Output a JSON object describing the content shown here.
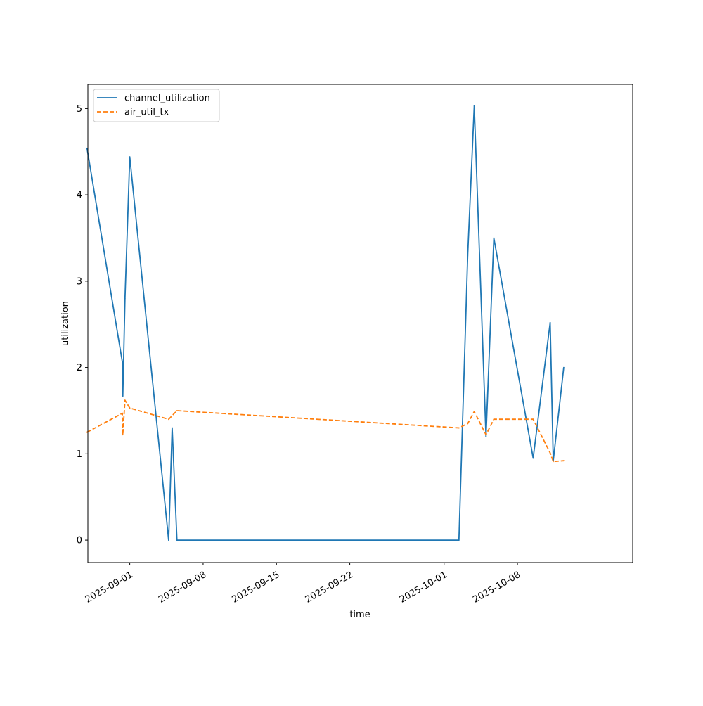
{
  "chart_data": {
    "type": "line",
    "xlabel": "time",
    "ylabel": "utilization",
    "xlim": [
      "2025-08-28T00:00",
      "2025-10-19T00:00"
    ],
    "ylim": [
      -0.26,
      5.28
    ],
    "x_ticks": [
      "2025-09-01",
      "2025-09-08",
      "2025-09-15",
      "2025-09-22",
      "2025-10-01",
      "2025-10-08"
    ],
    "y_ticks": [
      0,
      1,
      2,
      3,
      4,
      5
    ],
    "grid": false,
    "legend_position": "upper-left",
    "series": [
      {
        "name": "channel_utilization",
        "color": "#1f77b4",
        "line_style": "solid",
        "points": [
          {
            "x": "2025-08-27T22:00",
            "y": 4.54
          },
          {
            "x": "2025-08-31T07:00",
            "y": 2.06
          },
          {
            "x": "2025-08-31T08:00",
            "y": 1.67
          },
          {
            "x": "2025-08-31T13:00",
            "y": 2.8
          },
          {
            "x": "2025-09-01T00:00",
            "y": 4.44
          },
          {
            "x": "2025-09-04T17:00",
            "y": 0.0
          },
          {
            "x": "2025-09-05T01:00",
            "y": 1.3
          },
          {
            "x": "2025-09-05T12:00",
            "y": 0.0
          },
          {
            "x": "2025-10-02T10:00",
            "y": 0.0
          },
          {
            "x": "2025-10-03T06:00",
            "y": 3.3
          },
          {
            "x": "2025-10-03T21:00",
            "y": 5.03
          },
          {
            "x": "2025-10-05T00:00",
            "y": 1.2
          },
          {
            "x": "2025-10-05T18:00",
            "y": 3.5
          },
          {
            "x": "2025-10-09T12:00",
            "y": 0.95
          },
          {
            "x": "2025-10-11T03:00",
            "y": 2.52
          },
          {
            "x": "2025-10-11T10:00",
            "y": 0.92
          },
          {
            "x": "2025-10-12T10:00",
            "y": 2.0
          }
        ]
      },
      {
        "name": "air_util_tx",
        "color": "#ff7f0e",
        "line_style": "dashed",
        "points": [
          {
            "x": "2025-08-27T22:00",
            "y": 1.25
          },
          {
            "x": "2025-08-31T07:00",
            "y": 1.47
          },
          {
            "x": "2025-08-31T08:00",
            "y": 1.22
          },
          {
            "x": "2025-08-31T13:00",
            "y": 1.62
          },
          {
            "x": "2025-09-01T00:00",
            "y": 1.53
          },
          {
            "x": "2025-09-04T17:00",
            "y": 1.4
          },
          {
            "x": "2025-09-05T12:00",
            "y": 1.5
          },
          {
            "x": "2025-10-02T10:00",
            "y": 1.3
          },
          {
            "x": "2025-10-03T06:00",
            "y": 1.35
          },
          {
            "x": "2025-10-03T21:00",
            "y": 1.49
          },
          {
            "x": "2025-10-05T00:00",
            "y": 1.22
          },
          {
            "x": "2025-10-05T18:00",
            "y": 1.4
          },
          {
            "x": "2025-10-09T12:00",
            "y": 1.4
          },
          {
            "x": "2025-10-11T03:00",
            "y": 1.01
          },
          {
            "x": "2025-10-11T10:00",
            "y": 0.91
          },
          {
            "x": "2025-10-12T10:00",
            "y": 0.92
          }
        ]
      }
    ]
  }
}
